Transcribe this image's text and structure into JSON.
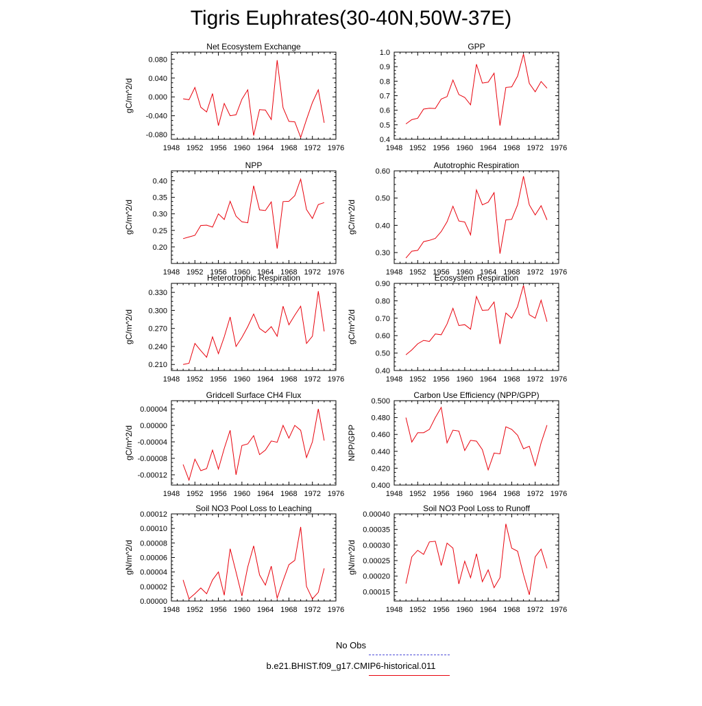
{
  "figure": {
    "title": "Tigris Euphrates(30-40N,50W-37E)",
    "line_color": "#e8000b",
    "obs_line_color": "#4a4ad8"
  },
  "legend": {
    "obs_label": "No Obs",
    "model_label": "b.e21.BHIST.f09_g17.CMIP6-historical.011"
  },
  "chart_data": [
    {
      "type": "line",
      "title": "Net Ecosystem Exchange",
      "ylabel": "gC/m^2/d",
      "xlim": [
        1948,
        1976
      ],
      "ylim": [
        -0.09,
        0.095
      ],
      "xticks": [
        1948,
        1952,
        1956,
        1960,
        1964,
        1968,
        1972,
        1976
      ],
      "yticks": [
        "0.080",
        "0.040",
        "0.000",
        "-0.040",
        "-0.080"
      ],
      "x": [
        1950,
        1951,
        1952,
        1953,
        1954,
        1955,
        1956,
        1957,
        1958,
        1959,
        1960,
        1961,
        1962,
        1963,
        1964,
        1965,
        1966,
        1967,
        1968,
        1969,
        1970,
        1971,
        1972,
        1973,
        1974
      ],
      "values": [
        -0.004,
        -0.006,
        0.02,
        -0.022,
        -0.032,
        0.007,
        -0.061,
        -0.014,
        -0.04,
        -0.038,
        -0.005,
        0.015,
        -0.082,
        -0.027,
        -0.028,
        -0.048,
        0.078,
        -0.023,
        -0.052,
        -0.053,
        -0.086,
        -0.048,
        -0.012,
        0.015,
        -0.055
      ]
    },
    {
      "type": "line",
      "title": "GPP",
      "ylabel": "",
      "xlim": [
        1948,
        1976
      ],
      "ylim": [
        0.4,
        1.0
      ],
      "xticks": [
        1948,
        1952,
        1956,
        1960,
        1964,
        1968,
        1972,
        1976
      ],
      "yticks": [
        "0.4",
        "0.5",
        "0.6",
        "0.7",
        "0.8",
        "0.9",
        "1.0"
      ],
      "x": [
        1950,
        1951,
        1952,
        1953,
        1954,
        1955,
        1956,
        1957,
        1958,
        1959,
        1960,
        1961,
        1962,
        1963,
        1964,
        1965,
        1966,
        1967,
        1968,
        1969,
        1970,
        1971,
        1972,
        1973,
        1974
      ],
      "values": [
        0.506,
        0.535,
        0.545,
        0.608,
        0.614,
        0.612,
        0.677,
        0.694,
        0.808,
        0.708,
        0.688,
        0.637,
        0.917,
        0.787,
        0.793,
        0.855,
        0.494,
        0.757,
        0.761,
        0.835,
        0.986,
        0.785,
        0.727,
        0.798,
        0.752
      ]
    },
    {
      "type": "line",
      "title": "NPP",
      "ylabel": "gC/m^2/d",
      "xlim": [
        1948,
        1976
      ],
      "ylim": [
        0.15,
        0.43
      ],
      "xticks": [
        1948,
        1952,
        1956,
        1960,
        1964,
        1968,
        1972,
        1976
      ],
      "yticks": [
        "0.40",
        "0.35",
        "0.30",
        "0.25",
        "0.20"
      ],
      "x": [
        1950,
        1951,
        1952,
        1953,
        1954,
        1955,
        1956,
        1957,
        1958,
        1959,
        1960,
        1961,
        1962,
        1963,
        1964,
        1965,
        1966,
        1967,
        1968,
        1969,
        1970,
        1971,
        1972,
        1973,
        1974
      ],
      "values": [
        0.225,
        0.23,
        0.235,
        0.265,
        0.266,
        0.26,
        0.3,
        0.283,
        0.338,
        0.293,
        0.276,
        0.273,
        0.385,
        0.312,
        0.31,
        0.336,
        0.195,
        0.337,
        0.338,
        0.355,
        0.405,
        0.313,
        0.286,
        0.328,
        0.334
      ]
    },
    {
      "type": "line",
      "title": "Autotrophic Respiration",
      "ylabel": "gC/m^2/d",
      "xlim": [
        1948,
        1976
      ],
      "ylim": [
        0.26,
        0.6
      ],
      "xticks": [
        1948,
        1952,
        1956,
        1960,
        1964,
        1968,
        1972,
        1976
      ],
      "yticks": [
        "0.60",
        "0.50",
        "0.40",
        "0.30"
      ],
      "x": [
        1950,
        1951,
        1952,
        1953,
        1954,
        1955,
        1956,
        1957,
        1958,
        1959,
        1960,
        1961,
        1962,
        1963,
        1964,
        1965,
        1966,
        1967,
        1968,
        1969,
        1970,
        1971,
        1972,
        1973,
        1974
      ],
      "values": [
        0.28,
        0.305,
        0.308,
        0.34,
        0.345,
        0.352,
        0.377,
        0.413,
        0.47,
        0.416,
        0.412,
        0.365,
        0.53,
        0.475,
        0.485,
        0.52,
        0.296,
        0.42,
        0.422,
        0.475,
        0.58,
        0.475,
        0.438,
        0.472,
        0.42
      ]
    },
    {
      "type": "line",
      "title": "Heterotrophic Respiration",
      "ylabel": "gC/m^2/d",
      "xlim": [
        1948,
        1976
      ],
      "ylim": [
        0.2,
        0.345
      ],
      "xticks": [
        1948,
        1952,
        1956,
        1960,
        1964,
        1968,
        1972,
        1976
      ],
      "yticks": [
        "0.330",
        "0.300",
        "0.270",
        "0.240",
        "0.210"
      ],
      "x": [
        1950,
        1951,
        1952,
        1953,
        1954,
        1955,
        1956,
        1957,
        1958,
        1959,
        1960,
        1961,
        1962,
        1963,
        1964,
        1965,
        1966,
        1967,
        1968,
        1969,
        1970,
        1971,
        1972,
        1973,
        1974
      ],
      "values": [
        0.21,
        0.212,
        0.245,
        0.233,
        0.222,
        0.256,
        0.228,
        0.256,
        0.289,
        0.24,
        0.255,
        0.273,
        0.294,
        0.27,
        0.263,
        0.273,
        0.257,
        0.307,
        0.276,
        0.292,
        0.307,
        0.245,
        0.257,
        0.332,
        0.265
      ]
    },
    {
      "type": "line",
      "title": "Ecosystem Respiration",
      "ylabel": "gC/m^2/d",
      "xlim": [
        1948,
        1976
      ],
      "ylim": [
        0.4,
        0.9
      ],
      "xticks": [
        1948,
        1952,
        1956,
        1960,
        1964,
        1968,
        1972,
        1976
      ],
      "yticks": [
        "0.90",
        "0.80",
        "0.70",
        "0.60",
        "0.50",
        "0.40"
      ],
      "x": [
        1950,
        1951,
        1952,
        1953,
        1954,
        1955,
        1956,
        1957,
        1958,
        1959,
        1960,
        1961,
        1962,
        1963,
        1964,
        1965,
        1966,
        1967,
        1968,
        1969,
        1970,
        1971,
        1972,
        1973,
        1974
      ],
      "values": [
        0.49,
        0.518,
        0.553,
        0.573,
        0.567,
        0.61,
        0.605,
        0.667,
        0.757,
        0.658,
        0.663,
        0.637,
        0.825,
        0.745,
        0.747,
        0.793,
        0.552,
        0.73,
        0.7,
        0.767,
        0.888,
        0.72,
        0.7,
        0.803,
        0.68
      ]
    },
    {
      "type": "line",
      "title": "Gridcell Surface CH4 Flux",
      "ylabel": "gC/m^2/d",
      "xlim": [
        1948,
        1976
      ],
      "ylim": [
        -0.000145,
        6e-05
      ],
      "xticks": [
        1948,
        1952,
        1956,
        1960,
        1964,
        1968,
        1972,
        1976
      ],
      "yticks": [
        "0.00004",
        "0.00000",
        "-0.00004",
        "-0.00008",
        "-0.00012"
      ],
      "x": [
        1950,
        1951,
        1952,
        1953,
        1954,
        1955,
        1956,
        1957,
        1958,
        1959,
        1960,
        1961,
        1962,
        1963,
        1964,
        1965,
        1966,
        1967,
        1968,
        1969,
        1970,
        1971,
        1972,
        1973,
        1974
      ],
      "values": [
        -9.5e-05,
        -0.000133,
        -8.2e-05,
        -0.00011,
        -0.000105,
        -6e-05,
        -0.000106,
        -5.6e-05,
        -1.2e-05,
        -0.00012,
        -4.9e-05,
        -4.5e-05,
        -2.5e-05,
        -7.1e-05,
        -6e-05,
        -3.8e-05,
        -4.1e-05,
        0.0,
        -3.1e-05,
        0.0,
        -1.2e-05,
        -7.8e-05,
        -4e-05,
        4e-05,
        -3.7e-05
      ]
    },
    {
      "type": "line",
      "title": "Carbon Use Efficiency (NPP/GPP)",
      "ylabel": "NPP/GPP",
      "xlim": [
        1948,
        1976
      ],
      "ylim": [
        0.4,
        0.5
      ],
      "xticks": [
        1948,
        1952,
        1956,
        1960,
        1964,
        1968,
        1972,
        1976
      ],
      "yticks": [
        "0.500",
        "0.480",
        "0.460",
        "0.440",
        "0.420",
        "0.400"
      ],
      "x": [
        1950,
        1951,
        1952,
        1953,
        1954,
        1955,
        1956,
        1957,
        1958,
        1959,
        1960,
        1961,
        1962,
        1963,
        1964,
        1965,
        1966,
        1967,
        1968,
        1969,
        1970,
        1971,
        1972,
        1973,
        1974
      ],
      "values": [
        0.48,
        0.451,
        0.462,
        0.462,
        0.466,
        0.48,
        0.492,
        0.45,
        0.465,
        0.464,
        0.441,
        0.453,
        0.452,
        0.442,
        0.418,
        0.438,
        0.437,
        0.469,
        0.466,
        0.459,
        0.443,
        0.446,
        0.423,
        0.45,
        0.471
      ]
    },
    {
      "type": "line",
      "title": "Soil NO3 Pool Loss to Leaching",
      "ylabel": "gN/m^2/d",
      "xlim": [
        1948,
        1976
      ],
      "ylim": [
        0.0,
        0.00012
      ],
      "xticks": [
        1948,
        1952,
        1956,
        1960,
        1964,
        1968,
        1972,
        1976
      ],
      "yticks": [
        "0.00012",
        "0.00010",
        "0.00008",
        "0.00006",
        "0.00004",
        "0.00002",
        "0.00000"
      ],
      "x": [
        1950,
        1951,
        1952,
        1953,
        1954,
        1955,
        1956,
        1957,
        1958,
        1959,
        1960,
        1961,
        1962,
        1963,
        1964,
        1965,
        1966,
        1967,
        1968,
        1969,
        1970,
        1971,
        1972,
        1973,
        1974
      ],
      "values": [
        2.9e-05,
        3e-06,
        1e-05,
        1.8e-05,
        1e-05,
        2.9e-05,
        4e-05,
        8e-06,
        7.2e-05,
        4e-05,
        7e-06,
        4.7e-05,
        7.6e-05,
        3.6e-05,
        2.2e-05,
        4.8e-05,
        4e-06,
        2.8e-05,
        5e-05,
        5.6e-05,
        0.000102,
        2e-05,
        3e-06,
        1.2e-05,
        4.5e-05
      ]
    },
    {
      "type": "line",
      "title": "Soil NO3 Pool Loss to Runoff",
      "ylabel": "gN/m^2/d",
      "xlim": [
        1948,
        1976
      ],
      "ylim": [
        0.00012,
        0.0004
      ],
      "xticks": [
        1948,
        1952,
        1956,
        1960,
        1964,
        1968,
        1972,
        1976
      ],
      "yticks": [
        "0.00040",
        "0.00035",
        "0.00030",
        "0.00025",
        "0.00020",
        "0.00015"
      ],
      "x": [
        1950,
        1951,
        1952,
        1953,
        1954,
        1955,
        1956,
        1957,
        1958,
        1959,
        1960,
        1961,
        1962,
        1963,
        1964,
        1965,
        1966,
        1967,
        1968,
        1969,
        1970,
        1971,
        1972,
        1973,
        1974
      ],
      "values": [
        0.000176,
        0.000262,
        0.000283,
        0.00027,
        0.00031,
        0.000312,
        0.000234,
        0.000306,
        0.00029,
        0.000175,
        0.000248,
        0.000195,
        0.000272,
        0.000182,
        0.00022,
        0.000163,
        0.000195,
        0.000368,
        0.00029,
        0.00028,
        0.000205,
        0.00014,
        0.000262,
        0.000287,
        0.000225
      ]
    }
  ]
}
